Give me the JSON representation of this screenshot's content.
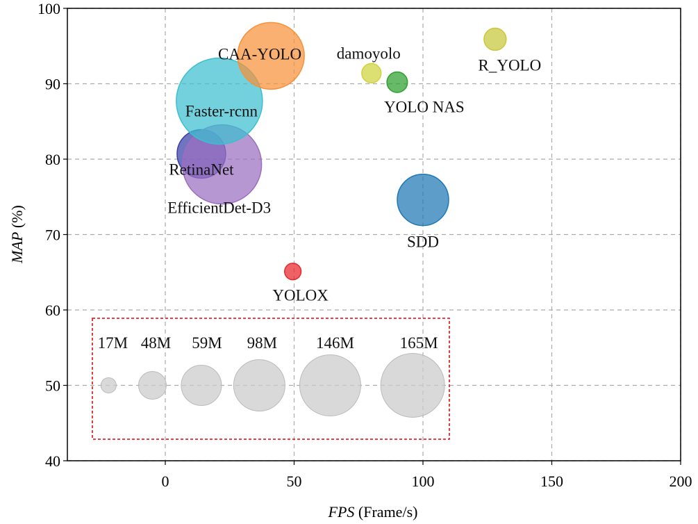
{
  "chart_data": {
    "type": "scatter",
    "subtype": "bubble",
    "xlabel_italic": "FPS",
    "xlabel_rest": " (Frame/s)",
    "ylabel_italic": "MAP",
    "ylabel_rest": " (%)",
    "xlim": [
      -38,
      200
    ],
    "ylim": [
      40,
      100
    ],
    "xticks": [
      0,
      50,
      100,
      150,
      200
    ],
    "yticks": [
      40,
      50,
      60,
      70,
      80,
      90,
      100
    ],
    "grid": true,
    "points": [
      {
        "name": "RetinaNet",
        "x": 14,
        "y": 80.7,
        "size_M": 88,
        "color": "#3a3fa8"
      },
      {
        "name": "EfficientDet-D3",
        "x": 22,
        "y": 79.3,
        "size_M": 220,
        "color": "#9b6fc0"
      },
      {
        "name": "Faster-rcnn",
        "x": 21,
        "y": 87.7,
        "size_M": 245,
        "color": "#3bbfcf"
      },
      {
        "name": "CAA-YOLO",
        "x": 41,
        "y": 93.7,
        "size_M": 175,
        "color": "#f7913a"
      },
      {
        "name": "damoyolo",
        "x": 80,
        "y": 91.4,
        "size_M": 27,
        "color": "#cfd23a"
      },
      {
        "name": "YOLO NAS",
        "x": 90,
        "y": 90.2,
        "size_M": 30,
        "color": "#2ca02c"
      },
      {
        "name": "R_YOLO",
        "x": 128,
        "y": 95.9,
        "size_M": 34,
        "color": "#c8c83a"
      },
      {
        "name": "SDD",
        "x": 100,
        "y": 74.6,
        "size_M": 98,
        "color": "#1f77b4"
      },
      {
        "name": "YOLOX",
        "x": 49.5,
        "y": 65.1,
        "size_M": 20,
        "color": "#e8262b"
      }
    ],
    "size_legend": {
      "y": 50,
      "color": "#cccccc",
      "border_color": "#e8262b",
      "items": [
        {
          "label": "17M",
          "value": 17,
          "x": -22
        },
        {
          "label": "48M",
          "value": 48,
          "x": -5
        },
        {
          "label": "59M",
          "value": 59,
          "x": 14
        },
        {
          "label": "98M",
          "value": 98,
          "x": 36.5
        },
        {
          "label": "146M",
          "value": 146,
          "x": 64
        },
        {
          "label": "165M",
          "value": 165,
          "x": 96
        }
      ]
    }
  }
}
